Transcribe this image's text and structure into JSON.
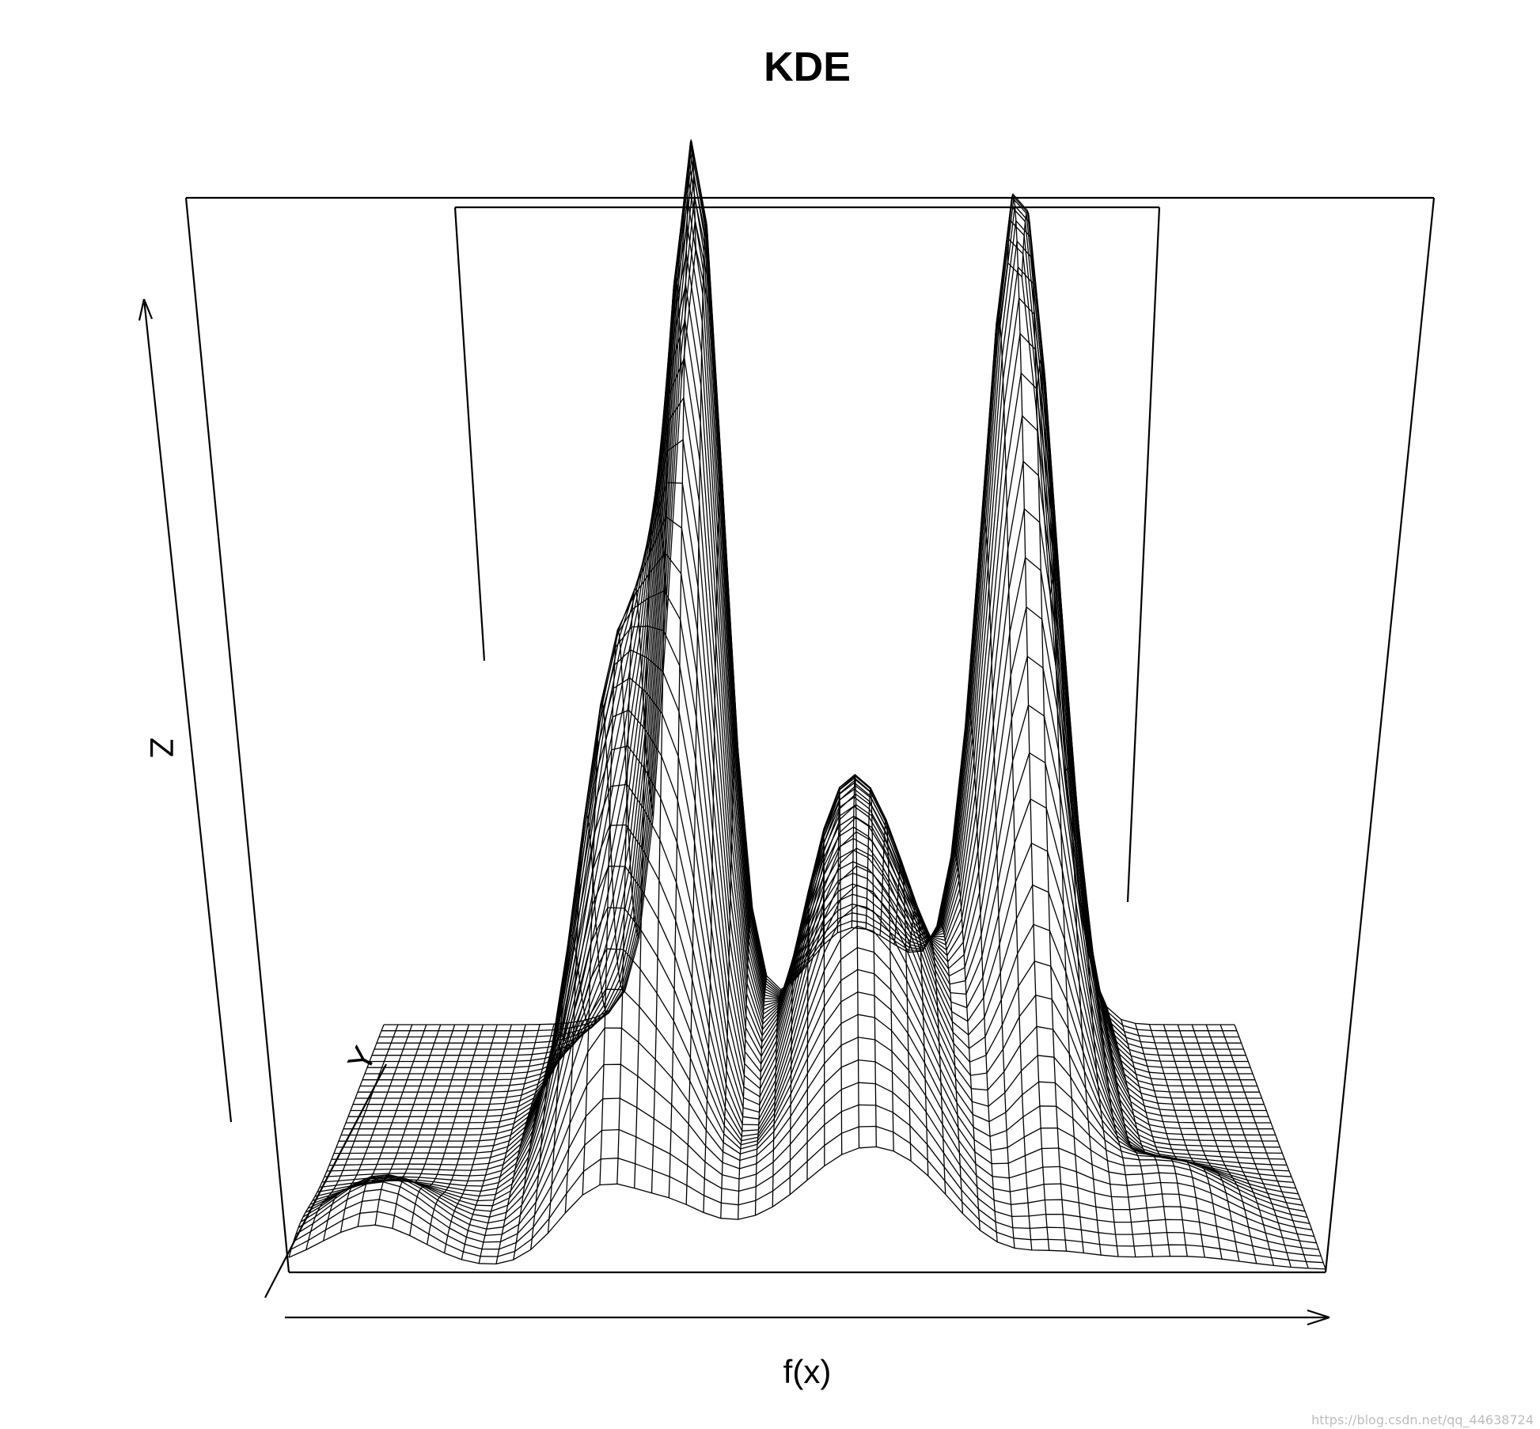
{
  "chart_data": {
    "type": "surface",
    "title": "KDE",
    "xlabel": "f(x)",
    "ylabel": "Y",
    "zlabel": "Z",
    "grid_x": 60,
    "grid_y": 40,
    "peaks": [
      {
        "x": 0.3,
        "y": 0.42,
        "height": 0.54,
        "spread_x": 0.04,
        "spread_y": 0.22
      },
      {
        "x": 0.37,
        "y": 0.82,
        "height": 1.0,
        "spread_x": 0.032,
        "spread_y": 0.32
      },
      {
        "x": 0.74,
        "y": 0.85,
        "height": 0.96,
        "spread_x": 0.04,
        "spread_y": 0.3
      },
      {
        "x": 0.53,
        "y": 0.5,
        "height": 0.3,
        "spread_x": 0.045,
        "spread_y": 0.3
      },
      {
        "x": 0.08,
        "y": 0.1,
        "height": 0.07,
        "spread_x": 0.05,
        "spread_y": 0.12
      },
      {
        "x": 0.44,
        "y": 0.1,
        "height": 0.06,
        "spread_x": 0.06,
        "spread_y": 0.12
      },
      {
        "x": 0.6,
        "y": 0.45,
        "height": 0.22,
        "spread_x": 0.05,
        "spread_y": 0.35
      },
      {
        "x": 0.86,
        "y": 0.2,
        "height": 0.06,
        "spread_x": 0.06,
        "spread_y": 0.12
      }
    ]
  },
  "watermark": "https://blog.csdn.net/qq_44638724"
}
